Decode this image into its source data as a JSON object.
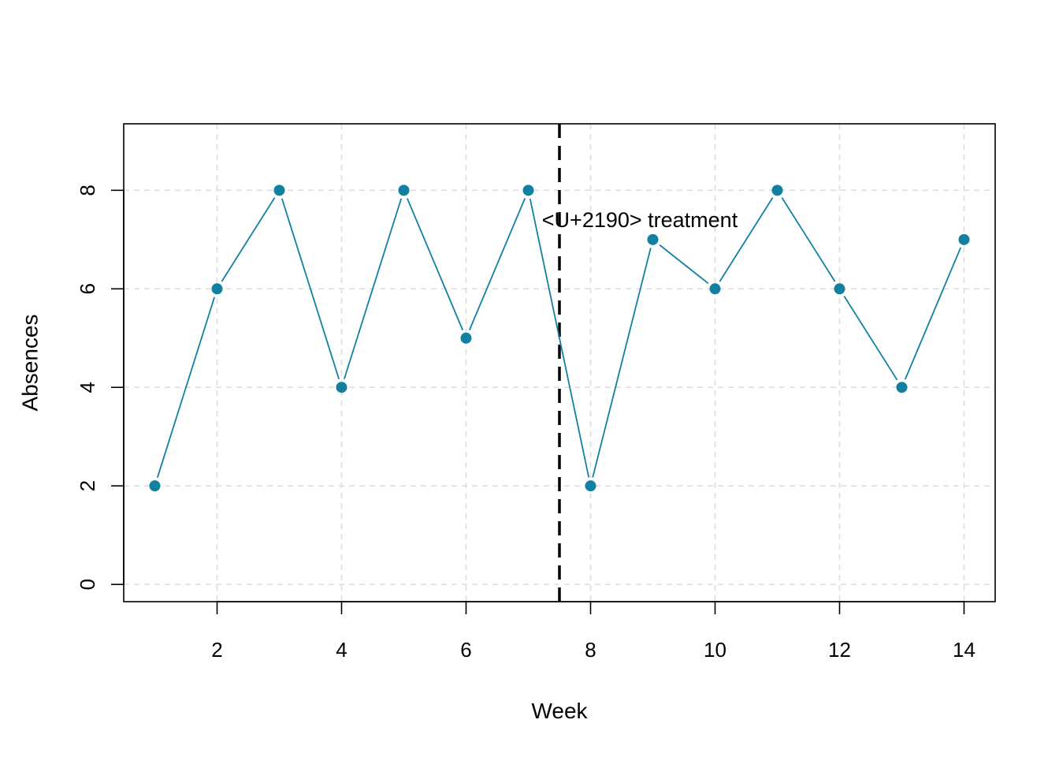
{
  "chart_data": {
    "type": "line",
    "title": "",
    "xlabel": "Week",
    "ylabel": "Absences",
    "x": [
      1,
      2,
      3,
      4,
      5,
      6,
      7,
      8,
      9,
      10,
      11,
      12,
      13,
      14
    ],
    "series": [
      {
        "values": [
          2,
          6,
          8,
          4,
          8,
          5,
          8,
          2,
          7,
          6,
          8,
          6,
          4,
          7
        ]
      }
    ],
    "xlim": [
      0.5,
      14.5
    ],
    "ylim": [
      -0.35,
      9.35
    ],
    "x_ticks": [
      2,
      4,
      6,
      8,
      10,
      12,
      14
    ],
    "y_ticks": [
      0,
      2,
      4,
      6,
      8
    ],
    "x_tick_labels": [
      "2",
      "4",
      "6",
      "8",
      "10",
      "12",
      "14"
    ],
    "y_tick_labels": [
      "0",
      "2",
      "4",
      "6",
      "8"
    ],
    "grid": true,
    "reference_line": {
      "x": 7.5,
      "style": "dashed"
    },
    "annotation": {
      "text": "<U+2190> treatment",
      "x": 7.5,
      "y": 7.4
    },
    "colors": {
      "series": "#1380A1",
      "grid": "#dddddd",
      "reference_line": "#000000"
    }
  }
}
